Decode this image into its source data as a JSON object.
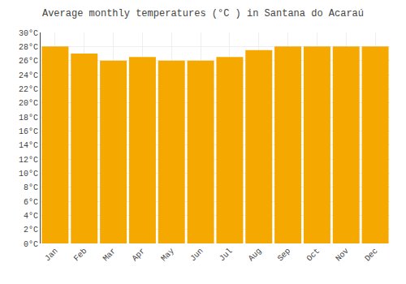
{
  "chart_data": {
    "type": "bar",
    "title": "Average monthly temperatures (°C ) in Santana do Acaraú",
    "categories": [
      "Jan",
      "Feb",
      "Mar",
      "Apr",
      "May",
      "Jun",
      "Jul",
      "Aug",
      "Sep",
      "Oct",
      "Nov",
      "Dec"
    ],
    "values": [
      28.0,
      27.0,
      26.0,
      26.5,
      26.0,
      26.0,
      26.5,
      27.5,
      28.0,
      28.0,
      28.0,
      28.0
    ],
    "color": "#F5A800",
    "ylim": [
      0,
      30
    ],
    "yticks": [
      {
        "value": 0,
        "label": "0°C"
      },
      {
        "value": 2,
        "label": "2°C"
      },
      {
        "value": 4,
        "label": "4°C"
      },
      {
        "value": 6,
        "label": "6°C"
      },
      {
        "value": 8,
        "label": "8°C"
      },
      {
        "value": 10,
        "label": "10°C"
      },
      {
        "value": 12,
        "label": "12°C"
      },
      {
        "value": 14,
        "label": "14°C"
      },
      {
        "value": 16,
        "label": "16°C"
      },
      {
        "value": 18,
        "label": "18°C"
      },
      {
        "value": 20,
        "label": "20°C"
      },
      {
        "value": 22,
        "label": "22°C"
      },
      {
        "value": 24,
        "label": "24°C"
      },
      {
        "value": 26,
        "label": "26°C"
      },
      {
        "value": 28,
        "label": "28°C"
      },
      {
        "value": 30,
        "label": "30°C"
      }
    ],
    "grid": true
  }
}
